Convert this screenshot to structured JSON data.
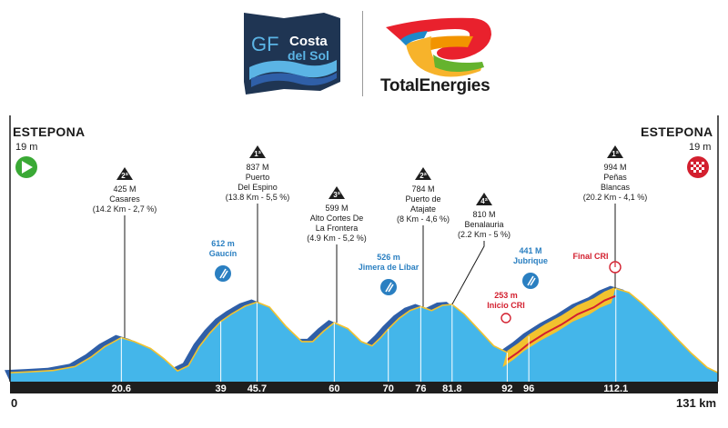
{
  "header": {
    "event_logo_lines": [
      "GF",
      "Costa",
      "del Sol"
    ],
    "sponsor_name": "TotalEnergies"
  },
  "start": {
    "town": "ESTEPONA",
    "altitude": "19 m"
  },
  "finish": {
    "town": "ESTEPONA",
    "altitude": "19 m"
  },
  "distance_axis": {
    "start_label": "0",
    "end_label": "131 km"
  },
  "km_markers": [
    "20.6",
    "39",
    "45.7",
    "60",
    "70",
    "76",
    "81.8",
    "92",
    "96",
    "112.1"
  ],
  "climbs": [
    {
      "category": "2ª",
      "altitude": "425 M",
      "name": [
        "Casares"
      ],
      "detail": "(14.2 Km - 2,7 %)",
      "km": 20.6
    },
    {
      "category": "1ª",
      "altitude": "837 M",
      "name": [
        "Puerto",
        "Del Espino"
      ],
      "detail": "(13.8 Km - 5,5 %)",
      "km": 45.7
    },
    {
      "category": "3ª",
      "altitude": "599 M",
      "name": [
        "Alto Cortes De",
        "La Frontera"
      ],
      "detail": "(4.9 Km - 5,2 %)",
      "km": 60
    },
    {
      "category": "2ª",
      "altitude": "784 M",
      "name": [
        "Puerto de",
        "Atajate"
      ],
      "detail": "(8 Km - 4,6 %)",
      "km": 76
    },
    {
      "category": "4ª",
      "altitude": "810 M",
      "name": [
        "Benalauria"
      ],
      "detail": "(2.2 Km - 5 %)",
      "km": 81.8
    },
    {
      "category": "1ª",
      "altitude": "994 M",
      "name": [
        "Peñas",
        "Blancas"
      ],
      "detail": "(20.2 Km - 4,1 %)",
      "km": 112.1
    }
  ],
  "feed_zones": [
    {
      "altitude": "612 m",
      "name": "Gaucín",
      "km": 39
    },
    {
      "altitude": "526 m",
      "name": "Jimera de Líbar",
      "km": 70
    },
    {
      "altitude": "441 M",
      "name": "Jubrique",
      "km": 96
    }
  ],
  "timed_sections": [
    {
      "label": "Inicio CRI",
      "altitude": "253 m",
      "km": 92
    },
    {
      "label": "Final CRI",
      "km": 112.1
    }
  ],
  "colors": {
    "profile_fill": "#44b6ea",
    "profile_shadow": "#2f5fa8",
    "climb_highlight": "#f2c22e",
    "timed_route": "#d3202f",
    "axis_bar": "#1e1e1e",
    "start_flag": "#3aa935",
    "finish_flag": "#d3202f",
    "feed_zone": "#2a7fc1",
    "logo_navy": "#1f3553",
    "logo_blue": "#5bb4e5"
  }
}
